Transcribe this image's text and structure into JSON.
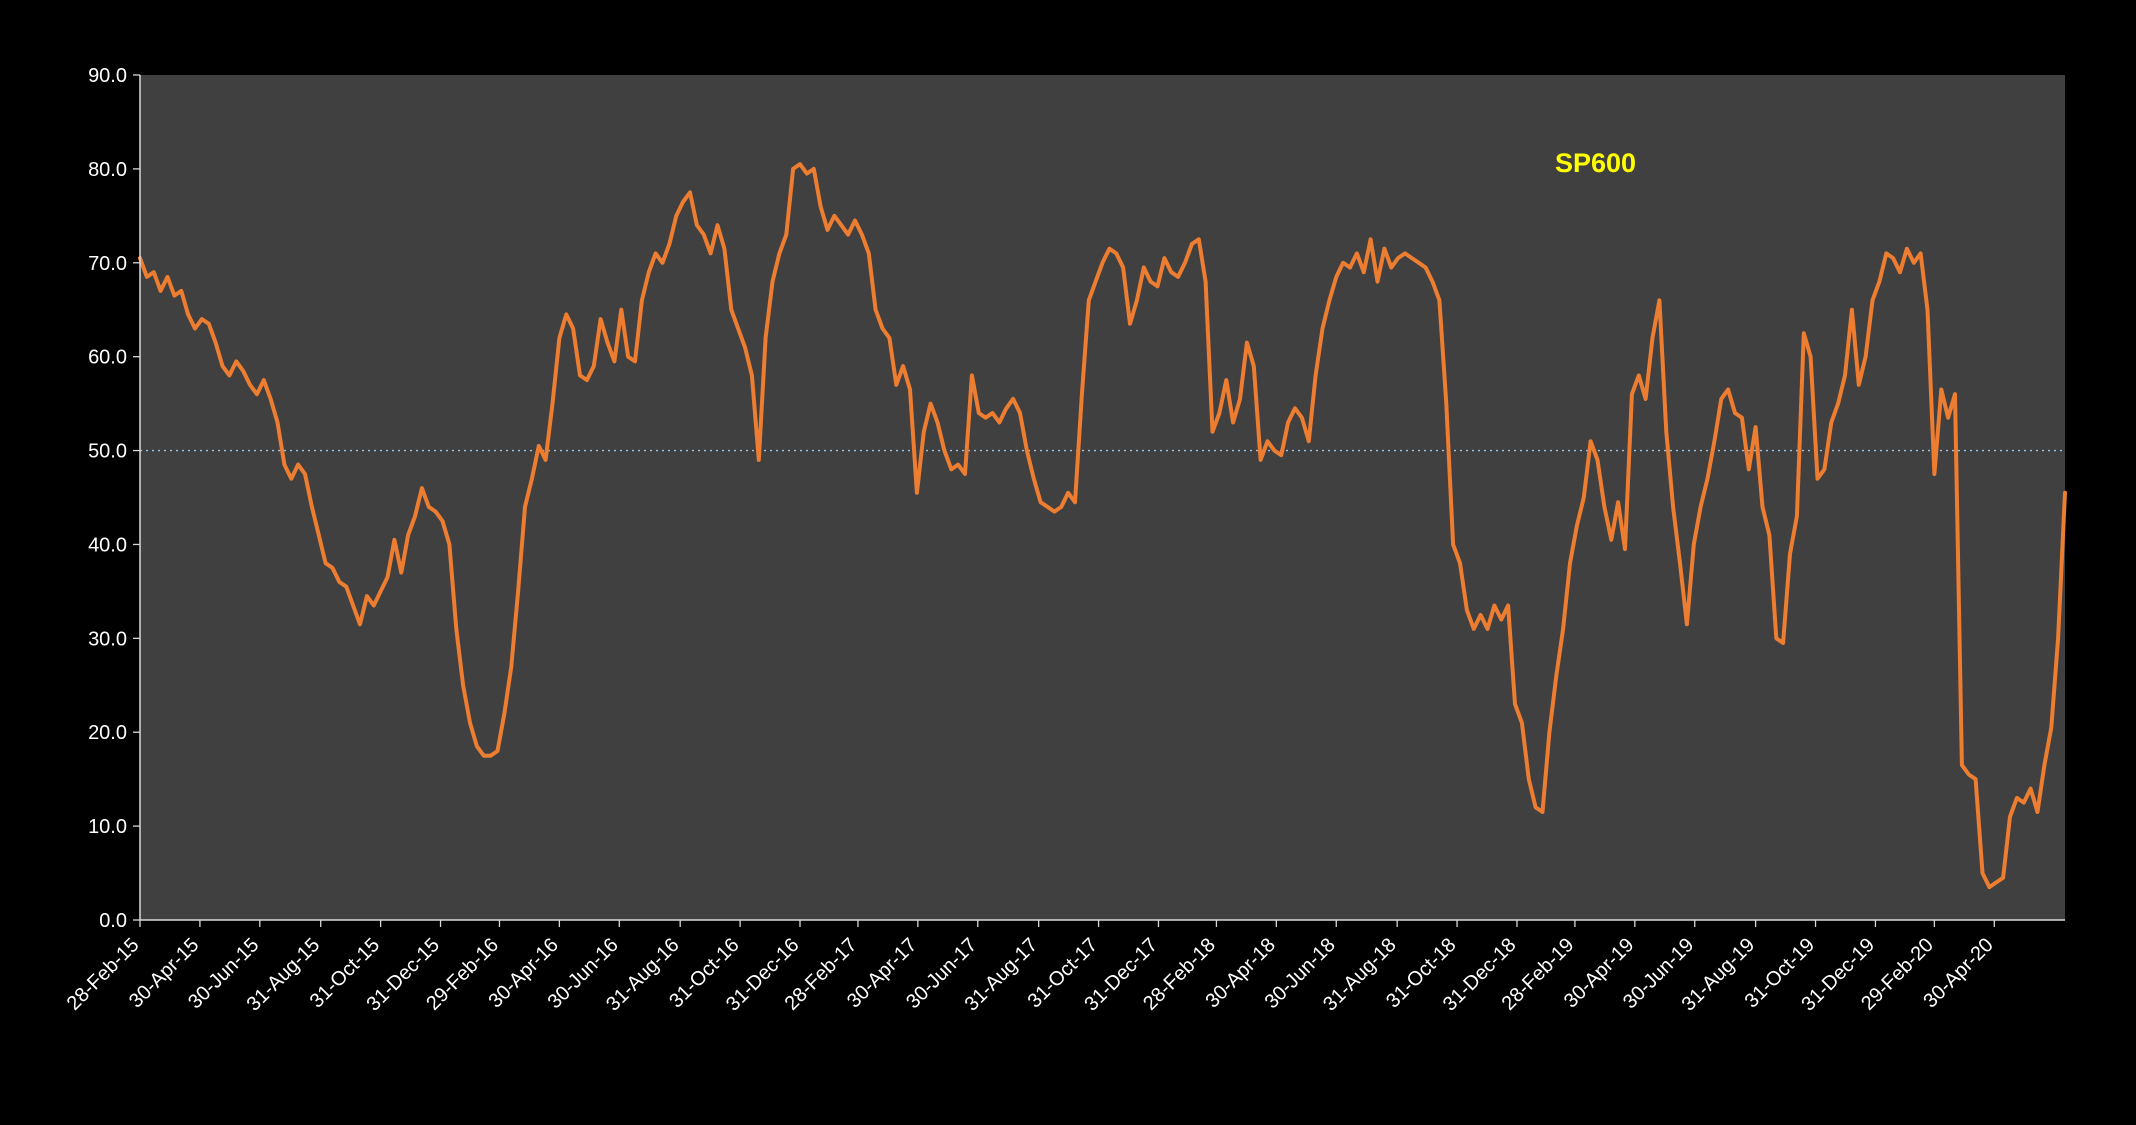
{
  "page": {
    "background": "#000000"
  },
  "chart_data": {
    "type": "line",
    "title": "",
    "series_label": "SP600",
    "series_label_color": "#FFFF00",
    "line_color": "#ED7D31",
    "plot_background": "#404040",
    "axis_color": "#D9D9D9",
    "label_color": "#FFFFFF",
    "legend": "none",
    "grid": "off",
    "reference_line": {
      "value": 50.0,
      "color": "#9DC3E6",
      "style": "dotted"
    },
    "ylim": [
      0,
      90
    ],
    "ytick_interval": 10,
    "ytick_labels": [
      "0.0",
      "10.0",
      "20.0",
      "30.0",
      "40.0",
      "50.0",
      "60.0",
      "70.0",
      "80.0",
      "90.0"
    ],
    "x_start_date": "28-Feb-15",
    "x_frequency": "weekly",
    "xtick_labels": [
      "28-Feb-15",
      "30-Apr-15",
      "30-Jun-15",
      "31-Aug-15",
      "31-Oct-15",
      "31-Dec-15",
      "29-Feb-16",
      "30-Apr-16",
      "30-Jun-16",
      "31-Aug-16",
      "31-Oct-16",
      "31-Dec-16",
      "28-Feb-17",
      "30-Apr-17",
      "30-Jun-17",
      "31-Aug-17",
      "31-Oct-17",
      "31-Dec-17",
      "28-Feb-18",
      "30-Apr-18",
      "30-Jun-18",
      "31-Aug-18",
      "31-Oct-18",
      "31-Dec-18",
      "28-Feb-19",
      "30-Apr-19",
      "30-Jun-19",
      "31-Aug-19",
      "31-Oct-19",
      "31-Dec-19",
      "29-Feb-20",
      "30-Apr-20"
    ],
    "values": [
      70.5,
      68.5,
      69,
      67,
      68.5,
      66.5,
      67,
      64.5,
      63,
      64,
      63.5,
      61.5,
      59,
      58,
      59.5,
      58.5,
      57,
      56,
      57.5,
      55.5,
      53,
      48.5,
      47,
      48.5,
      47.5,
      44,
      41,
      38,
      37.5,
      36,
      35.5,
      33.5,
      31.5,
      34.5,
      33.5,
      35,
      36.5,
      40.5,
      37,
      41,
      43,
      46,
      44,
      43.5,
      42.5,
      40,
      31,
      25,
      21,
      18.5,
      17.5,
      17.5,
      18,
      22,
      27,
      35,
      44,
      47,
      50.5,
      49,
      55,
      62,
      64.5,
      63,
      58,
      57.5,
      59,
      64,
      61.5,
      59.5,
      65,
      60,
      59.5,
      66,
      69,
      71,
      70,
      72,
      75,
      76.5,
      77.5,
      74,
      73,
      71,
      74,
      71.5,
      65,
      63,
      61,
      58,
      49,
      62,
      68,
      71,
      73,
      80,
      80.5,
      79.5,
      80,
      76,
      73.5,
      75,
      74,
      73,
      74.5,
      73,
      71,
      65,
      63,
      62,
      57,
      59,
      56.5,
      45.5,
      52,
      55,
      53,
      50,
      48,
      48.5,
      47.5,
      58,
      54,
      53.5,
      54,
      53,
      54.5,
      55.5,
      54,
      50,
      47,
      44.5,
      44,
      43.5,
      44,
      45.5,
      44.5,
      56,
      66,
      68,
      70,
      71.5,
      71,
      69.5,
      63.5,
      66,
      69.5,
      68,
      67.5,
      70.5,
      69,
      68.5,
      70,
      72,
      72.5,
      68,
      52,
      54,
      57.5,
      53,
      55.5,
      61.5,
      59,
      49,
      51,
      50,
      49.5,
      53,
      54.5,
      53.5,
      51,
      58,
      63,
      66,
      68.5,
      70,
      69.5,
      71,
      69,
      72.5,
      68,
      71.5,
      69.5,
      70.5,
      71,
      70.5,
      70,
      69.5,
      68,
      66,
      55,
      40,
      38,
      33,
      31,
      32.5,
      31,
      33.5,
      32,
      33.5,
      23,
      21,
      15,
      12,
      11.5,
      20,
      26,
      31,
      38,
      42,
      45,
      51,
      49,
      44,
      40.5,
      44.5,
      39.5,
      56,
      58,
      55.5,
      62,
      66,
      52,
      44,
      38,
      31.5,
      40,
      44,
      47,
      51,
      55.5,
      56.5,
      54,
      53.5,
      48,
      52.5,
      44,
      41,
      30,
      29.5,
      39,
      43,
      62.5,
      60,
      47,
      48,
      53,
      55,
      58,
      65,
      57,
      60,
      66,
      68,
      71,
      70.5,
      69,
      71.5,
      70,
      71,
      65,
      47.5,
      56.5,
      53.5,
      56,
      16.5,
      15.5,
      15,
      5,
      3.5,
      4,
      4.5,
      11,
      13,
      12.5,
      14,
      11.5,
      16.5,
      20.5,
      30,
      45.5
    ]
  }
}
